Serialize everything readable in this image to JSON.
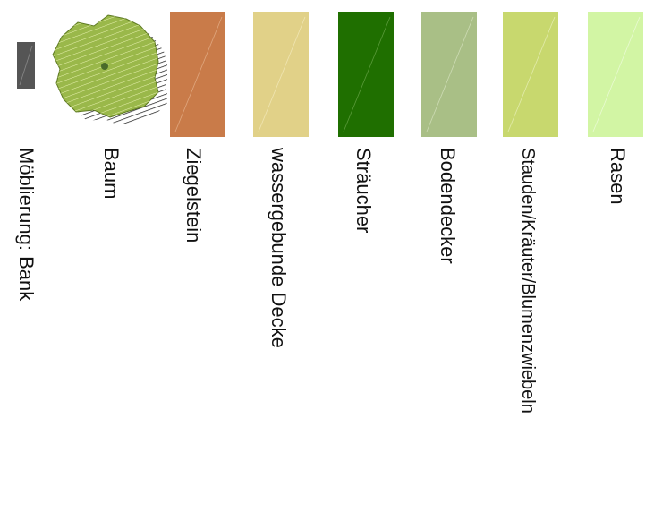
{
  "legend": {
    "items": [
      {
        "id": "bank",
        "label": "Möblierung: Bank",
        "color": "#555555",
        "icon": "bench-icon"
      },
      {
        "id": "baum",
        "label": "Baum",
        "color": "#9ab84a",
        "icon": "tree-icon"
      },
      {
        "id": "ziegelstein",
        "label": "Ziegelstein",
        "color": "#c97b49",
        "icon": "brick-swatch"
      },
      {
        "id": "wassergebunde",
        "label": "wassergebunde Decke",
        "color": "#e1d188",
        "icon": "gravel-swatch"
      },
      {
        "id": "straeucher",
        "label": "Sträucher",
        "color": "#1f6f00",
        "icon": "shrub-swatch"
      },
      {
        "id": "bodendecker",
        "label": "Bodendecker",
        "color": "#a9bf86",
        "icon": "groundcover-swatch"
      },
      {
        "id": "stauden",
        "label": "Stauden/Kräuter/Blumenzwiebeln",
        "color": "#c8d86e",
        "icon": "perennial-swatch"
      },
      {
        "id": "rasen",
        "label": "Rasen",
        "color": "#d2f5a4",
        "icon": "lawn-swatch"
      }
    ]
  }
}
